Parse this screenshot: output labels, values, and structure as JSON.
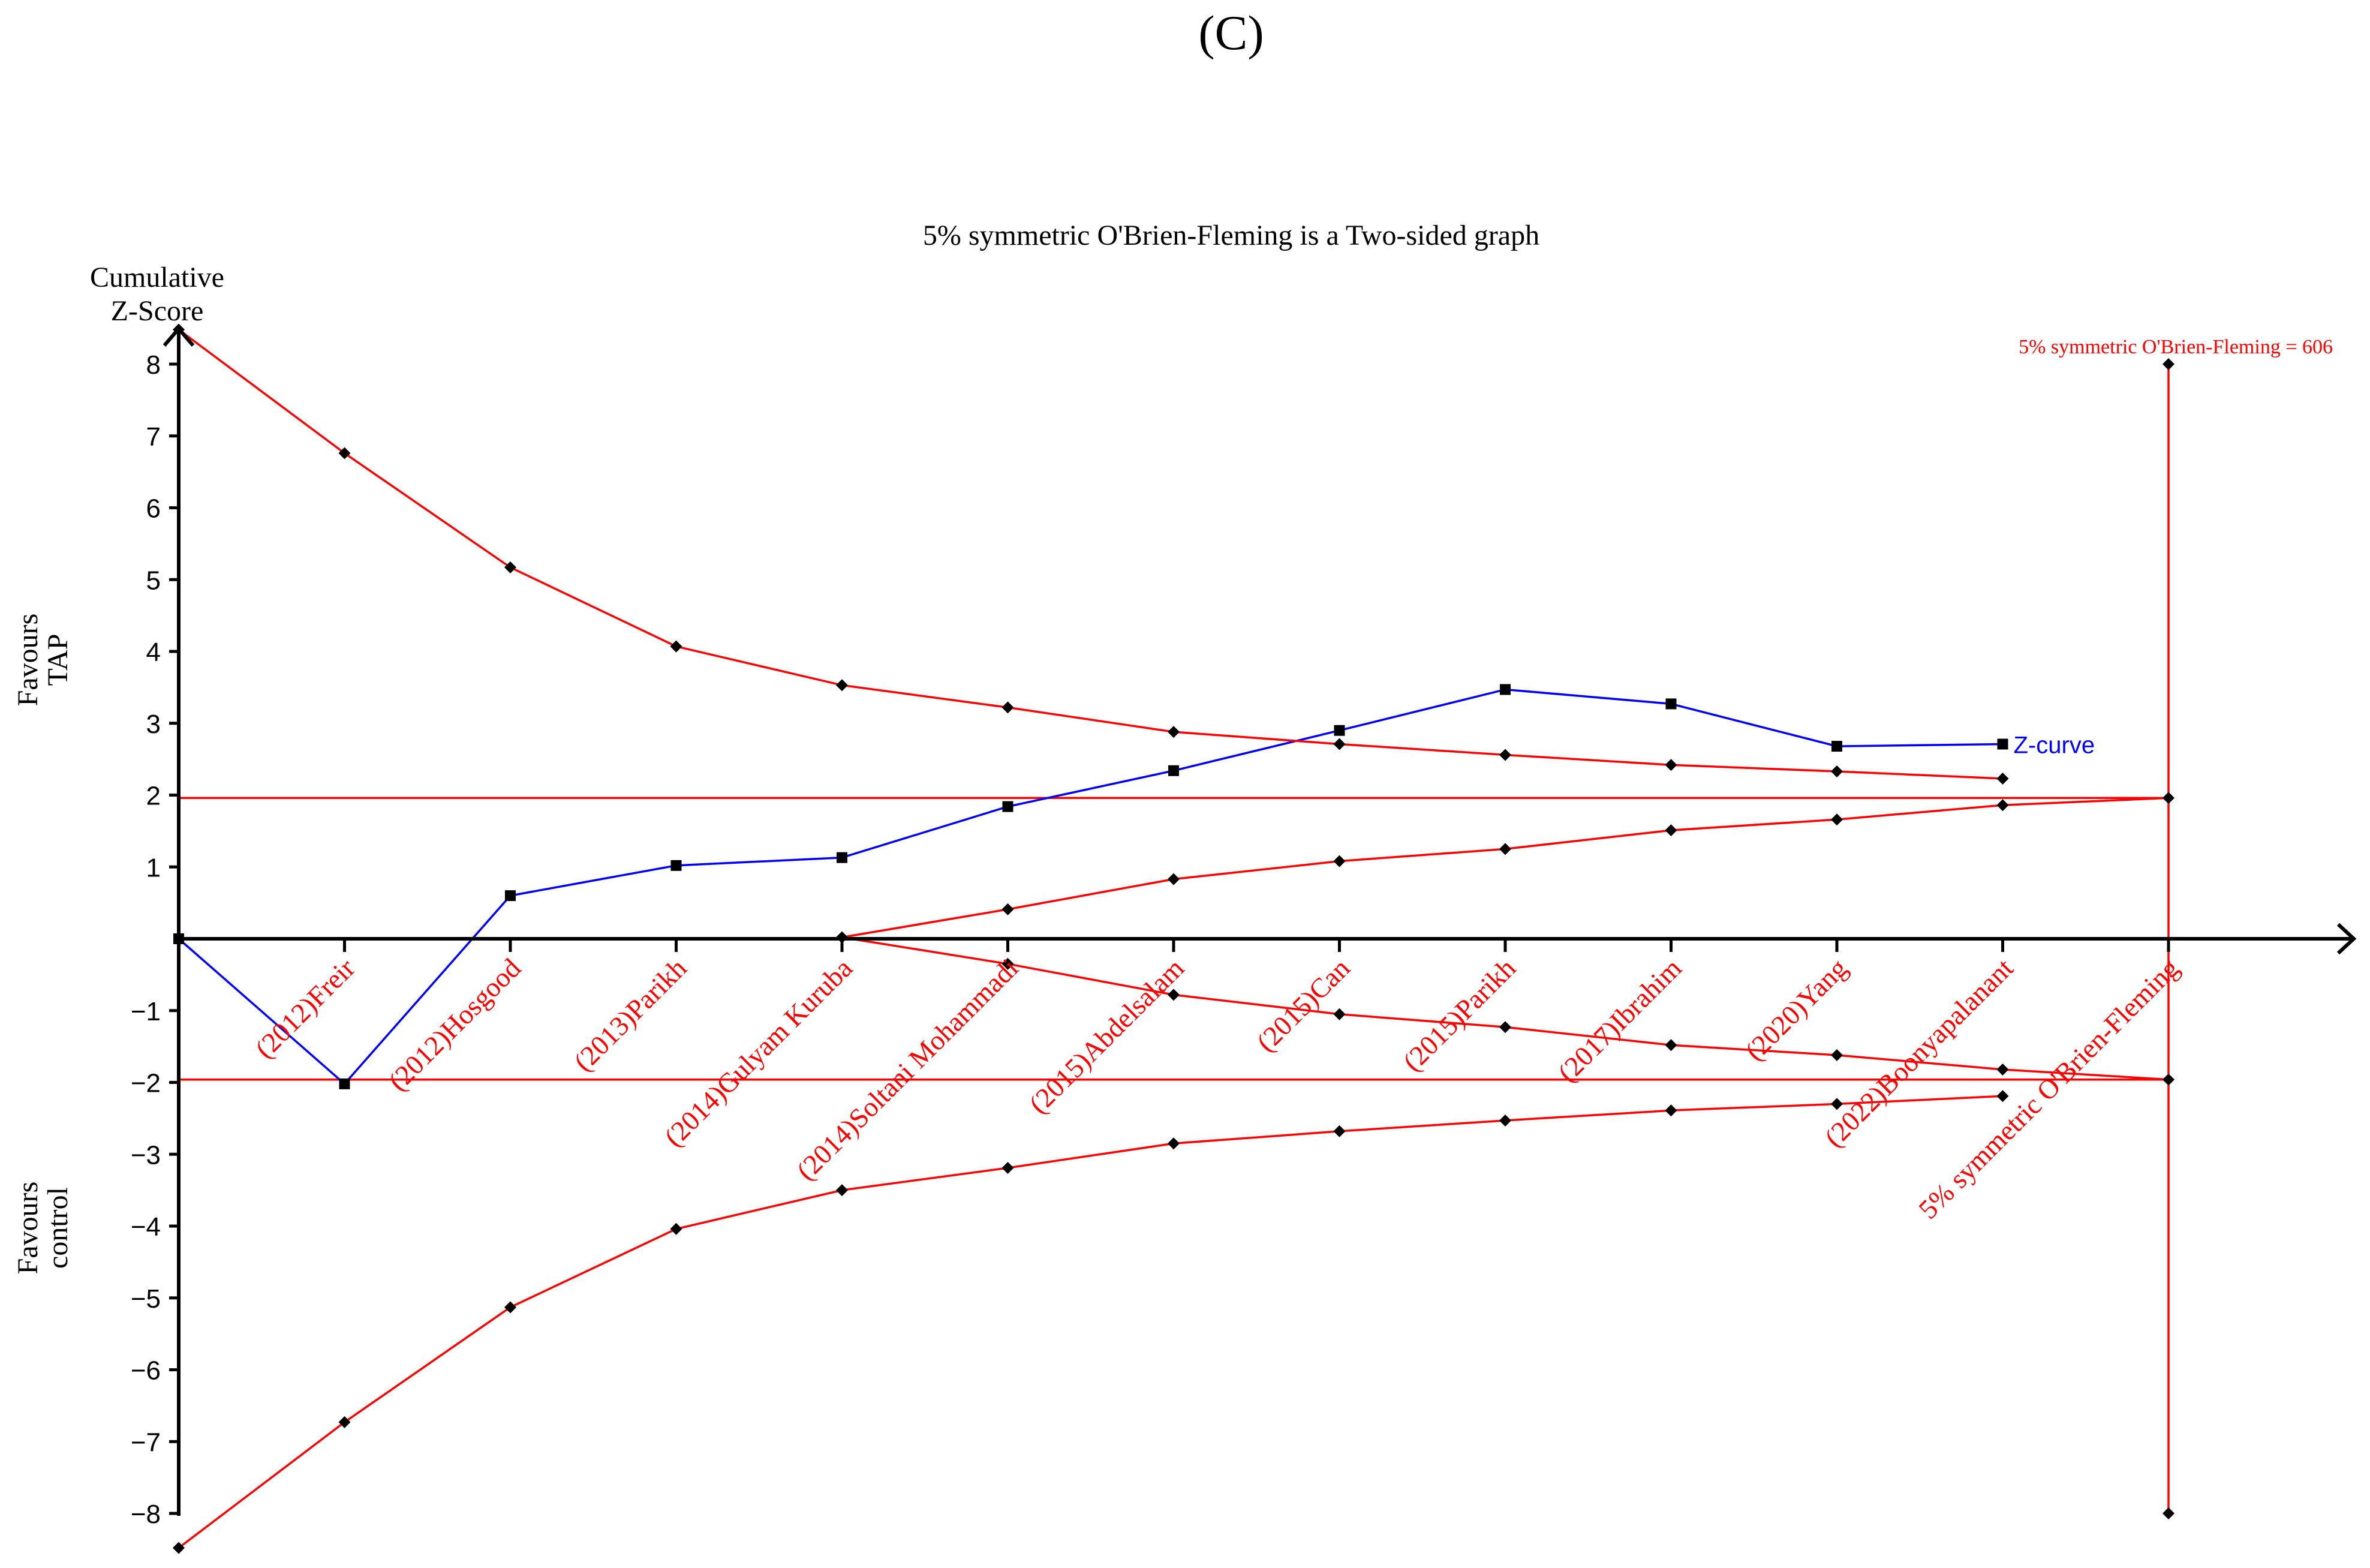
{
  "panel_label": "(C)",
  "chart_data": {
    "type": "line",
    "title": "5% symmetric O'Brien-Fleming is a Two-sided graph",
    "ylabel": "Cumulative Z-Score",
    "ylabel_lines": [
      "Cumulative",
      "Z-Score"
    ],
    "favours_top": [
      "Favours",
      "TAP"
    ],
    "favours_bottom": [
      "Favours",
      "control"
    ],
    "ylim": [
      -8.5,
      8.5
    ],
    "yticks": [
      8,
      7,
      6,
      5,
      4,
      3,
      2,
      1,
      -1,
      -2,
      -3,
      -4,
      -5,
      -6,
      -7,
      -8
    ],
    "ytick_labels": [
      "8",
      "7",
      "6",
      "5",
      "4",
      "3",
      "2",
      "1",
      "−1",
      "−2",
      "−3",
      "−4",
      "−5",
      "−6",
      "−7",
      "−8"
    ],
    "categories": [
      "",
      "(2012)Freir",
      "(2012)Hosgood",
      "(2013)Parikh",
      "(2014)Gulyam Kuruba",
      "(2014)Soltani Mohammadi",
      "(2015)Abdelsalam",
      "(2015)Can",
      "(2015)Parikh",
      "(2017)Ibrahim",
      "(2020)Yang",
      "(2022)Boonyapalanant",
      "5% symmetric O'Brien-Fleming"
    ],
    "conventional_boundary": [
      1.96,
      -1.96
    ],
    "required_information_size_label": "5% symmetric O'Brien-Fleming = 606",
    "required_information_size_limits": [
      8,
      -8
    ],
    "series": [
      {
        "name": "Z-curve",
        "color": "#0000ff",
        "marker": "square",
        "x": [
          0,
          1,
          2,
          3,
          4,
          5,
          6,
          7,
          8,
          9,
          10,
          11
        ],
        "y": [
          0,
          -2.02,
          0.6,
          1.02,
          1.13,
          1.84,
          2.34,
          2.9,
          3.47,
          3.27,
          2.68,
          2.71
        ]
      },
      {
        "color": "#ff0000",
        "marker": "diamond",
        "x": [
          0,
          1,
          2,
          3,
          4,
          5,
          6,
          7,
          8,
          9,
          10,
          11
        ],
        "y": [
          8.48,
          6.76,
          5.17,
          4.07,
          3.53,
          3.22,
          2.88,
          2.71,
          2.56,
          2.42,
          2.33,
          2.23
        ]
      },
      {
        "color": "#ff0000",
        "marker": "diamond",
        "x": [
          0,
          1,
          2,
          3,
          4,
          5,
          6,
          7,
          8,
          9,
          10,
          11
        ],
        "y": [
          -8.48,
          -6.73,
          -5.13,
          -4.04,
          -3.5,
          -3.19,
          -2.85,
          -2.68,
          -2.53,
          -2.39,
          -2.3,
          -2.19
        ]
      },
      {
        "color": "#ff0000",
        "marker": "diamond",
        "x": [
          4,
          5,
          6,
          7,
          8,
          9,
          10,
          11,
          12
        ],
        "y": [
          0.02,
          0.41,
          0.83,
          1.08,
          1.25,
          1.51,
          1.66,
          1.86,
          1.96
        ]
      },
      {
        "color": "#ff0000",
        "marker": "diamond",
        "x": [
          4,
          5,
          6,
          7,
          8,
          9,
          10,
          11,
          12
        ],
        "y": [
          0.02,
          -0.35,
          -0.78,
          -1.05,
          -1.23,
          -1.48,
          -1.62,
          -1.82,
          -1.96
        ]
      }
    ],
    "colors": {
      "boundary": "#ff0000",
      "zcurve": "#0000ff",
      "axis": "#000000",
      "marker": "#000000"
    },
    "grid": false
  }
}
